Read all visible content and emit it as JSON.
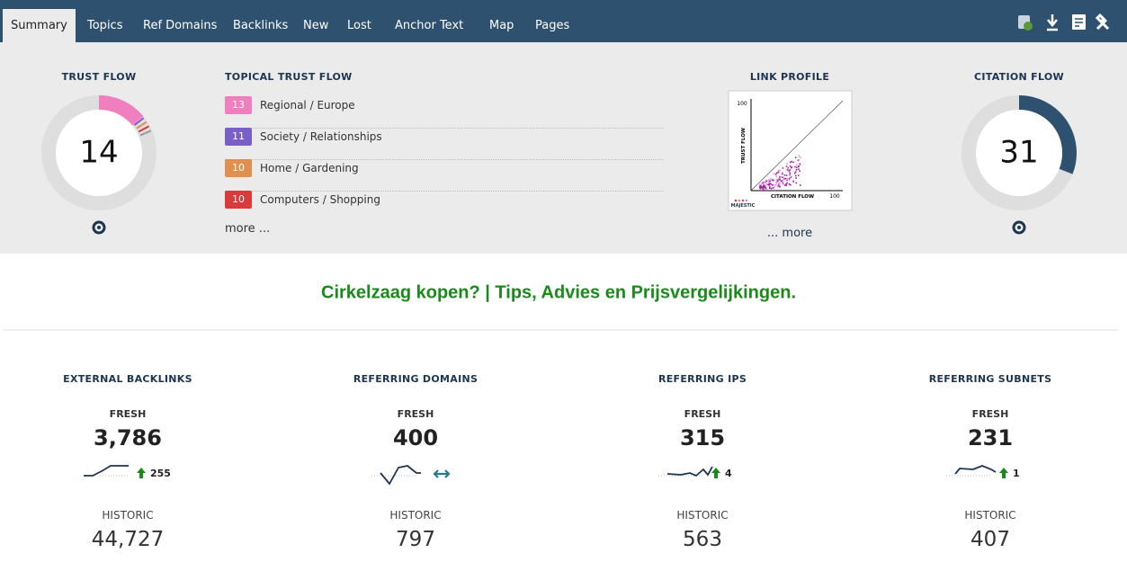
{
  "tabs": [
    "Summary",
    "Topics",
    "Ref Domains",
    "Backlinks",
    "New",
    "Lost",
    "Anchor Text",
    "Map",
    "Pages"
  ],
  "trust_flow": {
    "title": "TRUST FLOW",
    "value": 14,
    "color": "#f07fbf"
  },
  "topical_trust_flow": {
    "title": "TOPICAL TRUST FLOW",
    "items": [
      {
        "score": 13,
        "label": "Regional / Europe",
        "color": "#f07fbf"
      },
      {
        "score": 11,
        "label": "Society / Relationships",
        "color": "#7a5fc9"
      },
      {
        "score": 10,
        "label": "Home / Gardening",
        "color": "#e0904e"
      },
      {
        "score": 10,
        "label": "Computers / Shopping",
        "color": "#d93a3a"
      }
    ],
    "more": "more ..."
  },
  "link_profile": {
    "title": "LINK PROFILE",
    "y_axis": "TRUST FLOW",
    "x_axis": "CITATION FLOW",
    "y_max": "100",
    "x_max": "100",
    "brand": "MAJESTIC",
    "more": "... more"
  },
  "citation_flow": {
    "title": "CITATION FLOW",
    "value": 31,
    "color": "#2e5170"
  },
  "page_title": "Cirkelzaag kopen? | Tips, Advies en Prijsvergelijkingen.",
  "stats": [
    {
      "title": "EXTERNAL BACKLINKS",
      "fresh_label": "FRESH",
      "fresh": "3,786",
      "delta": "255",
      "historic_label": "HISTORIC",
      "historic": "44,727"
    },
    {
      "title": "REFERRING DOMAINS",
      "fresh_label": "FRESH",
      "fresh": "400",
      "delta": null,
      "historic_label": "HISTORIC",
      "historic": "797"
    },
    {
      "title": "REFERRING IPS",
      "fresh_label": "FRESH",
      "fresh": "315",
      "delta": "4",
      "historic_label": "HISTORIC",
      "historic": "563"
    },
    {
      "title": "REFERRING SUBNETS",
      "fresh_label": "FRESH",
      "fresh": "231",
      "delta": "1",
      "historic_label": "HISTORIC",
      "historic": "407"
    }
  ]
}
